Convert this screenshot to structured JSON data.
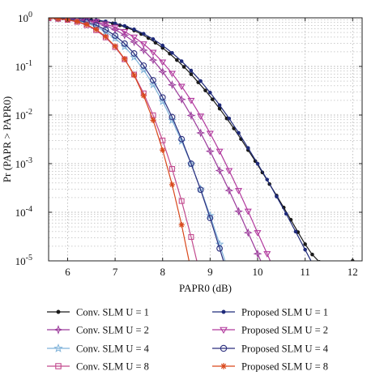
{
  "chart_data": {
    "type": "line",
    "xlabel": "PAPR0 (dB)",
    "ylabel": "Pr (PAPR > PAPR0)",
    "xlim": [
      5.6,
      12.2
    ],
    "ylim_log10": [
      -5,
      0
    ],
    "y_scale": "log",
    "grid": "dotted",
    "x_ticks": [
      "6",
      "7",
      "8",
      "9",
      "10",
      "11",
      "12"
    ],
    "y_ticks": [
      "10^0",
      "10^-1",
      "10^-2",
      "10^-3",
      "10^-4",
      "10^-5"
    ],
    "legend_position": "below-plot, 2 columns",
    "series": [
      {
        "name": "Conv. SLM U = 1",
        "color": "#1a1a1a",
        "marker": "dot",
        "points": [
          [
            5.6,
            0.99
          ],
          [
            5.75,
            0.985
          ],
          [
            5.9,
            0.978
          ],
          [
            6.05,
            0.968
          ],
          [
            6.2,
            0.953
          ],
          [
            6.35,
            0.933
          ],
          [
            6.5,
            0.905
          ],
          [
            6.65,
            0.87
          ],
          [
            6.8,
            0.824
          ],
          [
            6.95,
            0.769
          ],
          [
            7.1,
            0.702
          ],
          [
            7.25,
            0.628
          ],
          [
            7.4,
            0.548
          ],
          [
            7.55,
            0.464
          ],
          [
            7.7,
            0.383
          ],
          [
            7.85,
            0.307
          ],
          [
            8.0,
            0.24
          ],
          [
            8.15,
            0.183
          ],
          [
            8.3,
            0.135
          ],
          [
            8.45,
            0.098
          ],
          [
            8.6,
            0.069
          ],
          [
            8.75,
            0.047
          ],
          [
            8.9,
            0.032
          ],
          [
            9.05,
            0.021
          ],
          [
            9.2,
            0.0135
          ],
          [
            9.35,
            0.0085
          ],
          [
            9.5,
            0.0053
          ],
          [
            9.65,
            0.0032
          ],
          [
            9.8,
            0.0019
          ],
          [
            9.95,
            0.00113
          ],
          [
            10.1,
            0.00066
          ],
          [
            10.25,
            0.00038
          ],
          [
            10.4,
            0.00022
          ],
          [
            10.55,
            0.000125
          ],
          [
            10.7,
            7e-05
          ],
          [
            10.85,
            3.9e-05
          ],
          [
            11.0,
            2.2e-05
          ],
          [
            11.15,
            1.35e-05
          ],
          [
            11.3,
            9.5e-06
          ],
          [
            11.45,
            7e-06
          ],
          [
            11.6,
            5.5e-06
          ],
          [
            11.75,
            4.5e-06
          ],
          [
            11.9,
            3.3e-06
          ],
          [
            12.0,
            1e-05
          ]
        ]
      },
      {
        "name": "Proposed SLM U = 1",
        "color": "#1f2a7a",
        "marker": "dot",
        "points": [
          [
            5.6,
            0.995
          ],
          [
            5.8,
            0.99
          ],
          [
            6.0,
            0.98
          ],
          [
            6.2,
            0.965
          ],
          [
            6.4,
            0.94
          ],
          [
            6.6,
            0.9
          ],
          [
            6.8,
            0.845
          ],
          [
            7.0,
            0.77
          ],
          [
            7.2,
            0.68
          ],
          [
            7.4,
            0.58
          ],
          [
            7.6,
            0.47
          ],
          [
            7.8,
            0.365
          ],
          [
            8.0,
            0.27
          ],
          [
            8.2,
            0.19
          ],
          [
            8.4,
            0.128
          ],
          [
            8.6,
            0.082
          ],
          [
            8.8,
            0.05
          ],
          [
            9.0,
            0.029
          ],
          [
            9.2,
            0.016
          ],
          [
            9.4,
            0.0085
          ],
          [
            9.6,
            0.0043
          ],
          [
            9.8,
            0.0021
          ],
          [
            10.0,
            0.001
          ],
          [
            10.2,
            0.00047
          ],
          [
            10.4,
            0.00021
          ],
          [
            10.6,
            9.3e-05
          ],
          [
            10.8,
            4e-05
          ],
          [
            11.0,
            1.7e-05
          ],
          [
            11.2,
            7.2e-06
          ],
          [
            11.4,
            3e-06
          ]
        ]
      },
      {
        "name": "Conv. SLM U = 2",
        "color": "#9b3a9b",
        "marker": "star4",
        "points": [
          [
            5.6,
            0.99
          ],
          [
            5.8,
            0.98
          ],
          [
            6.0,
            0.96
          ],
          [
            6.2,
            0.925
          ],
          [
            6.4,
            0.87
          ],
          [
            6.6,
            0.79
          ],
          [
            6.8,
            0.69
          ],
          [
            7.0,
            0.57
          ],
          [
            7.2,
            0.44
          ],
          [
            7.4,
            0.32
          ],
          [
            7.6,
            0.215
          ],
          [
            7.8,
            0.135
          ],
          [
            8.0,
            0.078
          ],
          [
            8.2,
            0.042
          ],
          [
            8.4,
            0.021
          ],
          [
            8.6,
            0.0098
          ],
          [
            8.8,
            0.0043
          ],
          [
            9.0,
            0.0018
          ],
          [
            9.2,
            0.00072
          ],
          [
            9.4,
            0.00028
          ],
          [
            9.6,
            0.000105
          ],
          [
            9.8,
            3.8e-05
          ],
          [
            10.0,
            1.4e-05
          ],
          [
            10.2,
            5e-06
          ]
        ]
      },
      {
        "name": "Proposed SLM U = 2",
        "color": "#b23a9e",
        "marker": "triangle-down",
        "points": [
          [
            5.6,
            0.995
          ],
          [
            5.8,
            0.985
          ],
          [
            6.0,
            0.97
          ],
          [
            6.2,
            0.94
          ],
          [
            6.4,
            0.895
          ],
          [
            6.6,
            0.83
          ],
          [
            6.8,
            0.745
          ],
          [
            7.0,
            0.64
          ],
          [
            7.2,
            0.52
          ],
          [
            7.4,
            0.4
          ],
          [
            7.6,
            0.29
          ],
          [
            7.8,
            0.195
          ],
          [
            8.0,
            0.123
          ],
          [
            8.2,
            0.072
          ],
          [
            8.4,
            0.039
          ],
          [
            8.6,
            0.02
          ],
          [
            8.8,
            0.0095
          ],
          [
            9.0,
            0.0042
          ],
          [
            9.2,
            0.0018
          ],
          [
            9.4,
            0.00072
          ],
          [
            9.6,
            0.00028
          ],
          [
            9.8,
            0.000105
          ],
          [
            10.0,
            3.8e-05
          ],
          [
            10.2,
            1.4e-05
          ],
          [
            10.4,
            5e-06
          ]
        ]
      },
      {
        "name": "Conv. SLM U = 4",
        "color": "#7fb2d9",
        "marker": "star5",
        "points": [
          [
            5.6,
            0.985
          ],
          [
            5.8,
            0.965
          ],
          [
            6.0,
            0.93
          ],
          [
            6.2,
            0.87
          ],
          [
            6.4,
            0.78
          ],
          [
            6.6,
            0.66
          ],
          [
            6.8,
            0.52
          ],
          [
            7.0,
            0.38
          ],
          [
            7.2,
            0.255
          ],
          [
            7.4,
            0.155
          ],
          [
            7.6,
            0.085
          ],
          [
            7.8,
            0.042
          ],
          [
            8.0,
            0.019
          ],
          [
            8.2,
            0.0078
          ],
          [
            8.4,
            0.0029
          ],
          [
            8.6,
            0.00098
          ],
          [
            8.8,
            0.0003
          ],
          [
            9.0,
            8.5e-05
          ],
          [
            9.2,
            2.2e-05
          ],
          [
            9.4,
            5.5e-06
          ]
        ]
      },
      {
        "name": "Proposed SLM U = 4",
        "color": "#2c2f7e",
        "marker": "circle",
        "points": [
          [
            5.6,
            0.99
          ],
          [
            5.8,
            0.975
          ],
          [
            6.0,
            0.945
          ],
          [
            6.2,
            0.895
          ],
          [
            6.4,
            0.815
          ],
          [
            6.6,
            0.705
          ],
          [
            6.8,
            0.57
          ],
          [
            7.0,
            0.43
          ],
          [
            7.2,
            0.295
          ],
          [
            7.4,
            0.185
          ],
          [
            7.6,
            0.104
          ],
          [
            7.8,
            0.052
          ],
          [
            8.0,
            0.023
          ],
          [
            8.2,
            0.0091
          ],
          [
            8.4,
            0.0032
          ],
          [
            8.6,
            0.001
          ],
          [
            8.8,
            0.00029
          ],
          [
            9.0,
            7.6e-05
          ],
          [
            9.2,
            1.8e-05
          ],
          [
            9.4,
            4.2e-06
          ]
        ]
      },
      {
        "name": "Conv. SLM U = 8",
        "color": "#c24a8e",
        "marker": "square",
        "points": [
          [
            5.6,
            0.98
          ],
          [
            5.8,
            0.955
          ],
          [
            6.0,
            0.905
          ],
          [
            6.2,
            0.825
          ],
          [
            6.4,
            0.705
          ],
          [
            6.6,
            0.555
          ],
          [
            6.8,
            0.395
          ],
          [
            7.0,
            0.25
          ],
          [
            7.2,
            0.14
          ],
          [
            7.4,
            0.068
          ],
          [
            7.6,
            0.028
          ],
          [
            7.8,
            0.0099
          ],
          [
            8.0,
            0.003
          ],
          [
            8.2,
            0.00078
          ],
          [
            8.4,
            0.00017
          ],
          [
            8.6,
            3.1e-05
          ],
          [
            8.8,
            4.7e-06
          ]
        ]
      },
      {
        "name": "Proposed SLM U = 8",
        "color": "#d9481b",
        "marker": "asterisk",
        "points": [
          [
            5.6,
            0.985
          ],
          [
            5.8,
            0.96
          ],
          [
            6.0,
            0.915
          ],
          [
            6.2,
            0.84
          ],
          [
            6.4,
            0.725
          ],
          [
            6.6,
            0.575
          ],
          [
            6.8,
            0.41
          ],
          [
            7.0,
            0.26
          ],
          [
            7.2,
            0.143
          ],
          [
            7.4,
            0.066
          ],
          [
            7.6,
            0.025
          ],
          [
            7.8,
            0.0078
          ],
          [
            8.0,
            0.0019
          ],
          [
            8.2,
            0.00037
          ],
          [
            8.4,
            5.5e-05
          ],
          [
            8.6,
            6.2e-06
          ]
        ]
      }
    ]
  }
}
